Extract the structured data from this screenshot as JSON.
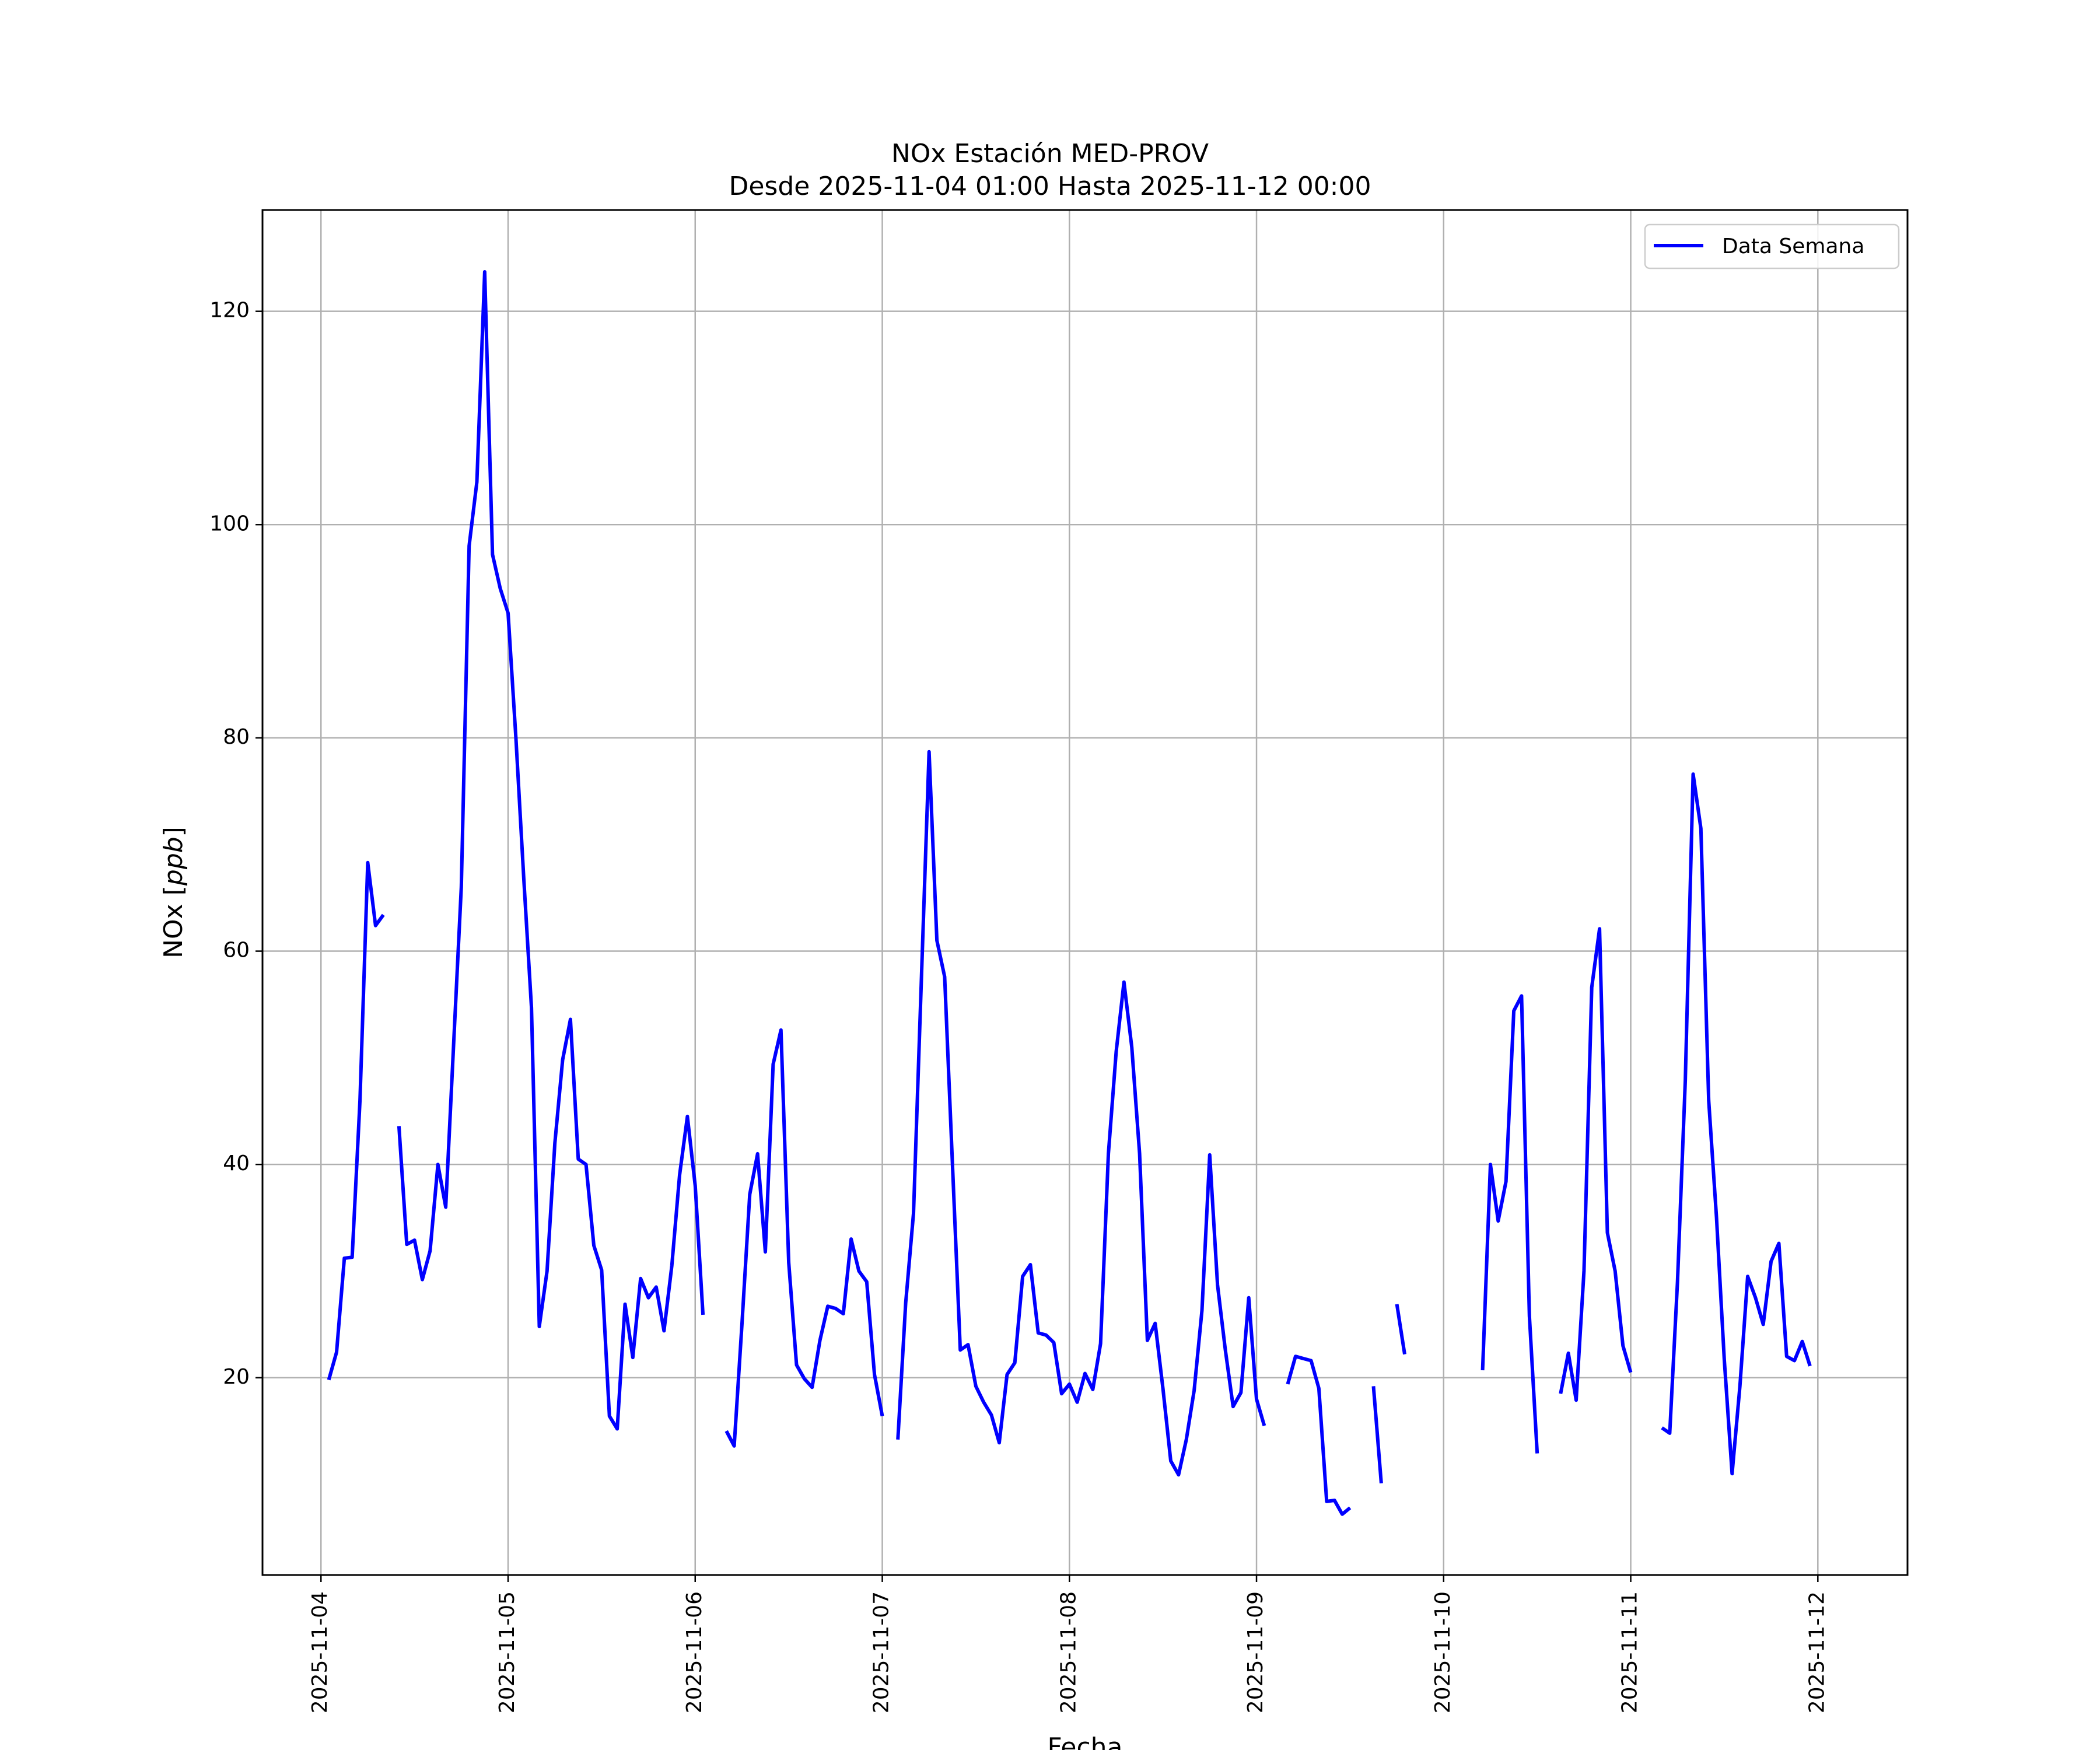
{
  "chart_data": {
    "type": "line",
    "title": "NOx Estación MED-PROV",
    "subtitle": "Desde 2025-11-04 01:00 Hasta 2025-11-12 00:00",
    "xlabel": "Fecha",
    "ylabel": "NOx [",
    "ylabel_unit": "ppb",
    "ylabel_close": "]",
    "xlim": [
      "2025-11-03 16:30",
      "2025-11-12 11:30"
    ],
    "ylim": [
      1.5,
      129.5
    ],
    "x_ticks": [
      "2025-11-04",
      "2025-11-05",
      "2025-11-06",
      "2025-11-07",
      "2025-11-08",
      "2025-11-09",
      "2025-11-10",
      "2025-11-11",
      "2025-11-12"
    ],
    "y_ticks": [
      20,
      40,
      60,
      80,
      100,
      120
    ],
    "grid": true,
    "legend_position": "top-right",
    "start_time": "2025-11-04 01:00",
    "interval": "1h",
    "series": [
      {
        "name": "Data Semana",
        "color": "#0000ff",
        "values": [
          19.8,
          22.4,
          31.2,
          31.3,
          46.0,
          68.3,
          62.4,
          63.4,
          null,
          43.6,
          32.5,
          32.9,
          29.2,
          31.9,
          40.0,
          36.0,
          51.0,
          66.0,
          98.0,
          104.0,
          123.7,
          97.2,
          94.0,
          91.7,
          80.0,
          67.0,
          54.7,
          24.8,
          30.0,
          42.0,
          49.8,
          53.6,
          40.5,
          40.0,
          32.4,
          30.1,
          16.4,
          15.2,
          26.9,
          21.9,
          29.3,
          27.5,
          28.5,
          24.4,
          30.5,
          39.0,
          44.5,
          38.0,
          25.9,
          null,
          null,
          15.0,
          13.6,
          25.0,
          37.2,
          41.0,
          31.8,
          49.4,
          52.6,
          30.8,
          21.2,
          19.9,
          19.1,
          23.5,
          26.7,
          26.5,
          26.0,
          33.0,
          30.0,
          29.0,
          20.3,
          16.4,
          null,
          14.2,
          27.0,
          35.4,
          57.0,
          78.7,
          61.0,
          57.6,
          40.0,
          22.6,
          23.1,
          19.2,
          17.7,
          16.5,
          13.9,
          20.3,
          21.4,
          29.5,
          30.6,
          24.2,
          24.0,
          23.3,
          18.5,
          19.4,
          17.7,
          20.4,
          18.9,
          23.2,
          41.0,
          50.6,
          57.1,
          51.0,
          41.0,
          23.5,
          25.1,
          19.0,
          12.2,
          10.9,
          14.2,
          18.8,
          26.3,
          40.9,
          28.7,
          22.6,
          17.3,
          18.6,
          27.5,
          18.0,
          15.5,
          null,
          null,
          19.4,
          22.0,
          21.8,
          21.6,
          19.0,
          8.4,
          8.5,
          7.2,
          7.8,
          null,
          null,
          19.2,
          10.1,
          null,
          26.9,
          22.2,
          null,
          null,
          null,
          null,
          null,
          null,
          null,
          null,
          null,
          20.7,
          40.0,
          34.7,
          38.4,
          54.4,
          55.8,
          25.8,
          12.9,
          null,
          null,
          18.5,
          22.3,
          17.9,
          30.0,
          56.6,
          62.1,
          33.6,
          30.0,
          23.0,
          20.5,
          null,
          null,
          null,
          15.3,
          14.8,
          29.0,
          47.9,
          76.6,
          71.5,
          46.0,
          35.0,
          21.7,
          11.0,
          19.2,
          29.5,
          27.5,
          25.0,
          30.9,
          32.6,
          22.0,
          21.6,
          23.4,
          21.1
        ]
      }
    ]
  }
}
